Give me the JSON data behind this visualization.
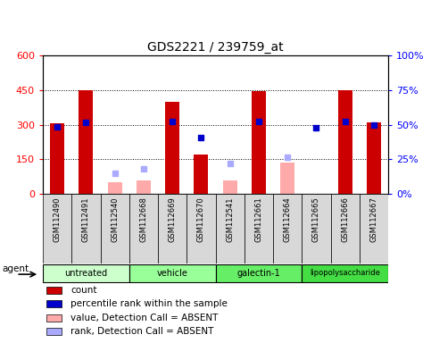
{
  "title": "GDS2221 / 239759_at",
  "samples": [
    "GSM112490",
    "GSM112491",
    "GSM112540",
    "GSM112668",
    "GSM112669",
    "GSM112670",
    "GSM112541",
    "GSM112661",
    "GSM112664",
    "GSM112665",
    "GSM112666",
    "GSM112667"
  ],
  "group_spans": [
    {
      "name": "untreated",
      "start": 0,
      "end": 2,
      "color": "#ccffcc"
    },
    {
      "name": "vehicle",
      "start": 3,
      "end": 5,
      "color": "#99ff99"
    },
    {
      "name": "galectin-1",
      "start": 6,
      "end": 8,
      "color": "#66ee66"
    },
    {
      "name": "lipopolysaccharide",
      "start": 9,
      "end": 11,
      "color": "#44dd44"
    }
  ],
  "count_values": [
    305,
    450,
    null,
    null,
    400,
    170,
    null,
    445,
    null,
    null,
    450,
    310
  ],
  "percentile_values": [
    290,
    310,
    null,
    null,
    315,
    245,
    null,
    315,
    null,
    285,
    315,
    300
  ],
  "absent_count_values": [
    null,
    null,
    50,
    60,
    null,
    null,
    60,
    null,
    135,
    null,
    null,
    null
  ],
  "absent_rank_values": [
    null,
    null,
    90,
    110,
    null,
    null,
    130,
    null,
    160,
    null,
    null,
    null
  ],
  "ylim_left": [
    0,
    600
  ],
  "yticks_left": [
    0,
    150,
    300,
    450,
    600
  ],
  "ytick_labels_left": [
    "0",
    "150",
    "300",
    "450",
    "600"
  ],
  "yticks_right": [
    0,
    25,
    50,
    75,
    100
  ],
  "ytick_labels_right": [
    "0%",
    "25%",
    "50%",
    "75%",
    "100%"
  ],
  "bar_color": "#cc0000",
  "rank_color": "#0000cc",
  "absent_count_color": "#ffaaaa",
  "absent_rank_color": "#aaaaff",
  "legend_items": [
    {
      "label": "count",
      "color": "#cc0000"
    },
    {
      "label": "percentile rank within the sample",
      "color": "#0000cc"
    },
    {
      "label": "value, Detection Call = ABSENT",
      "color": "#ffaaaa"
    },
    {
      "label": "rank, Detection Call = ABSENT",
      "color": "#aaaaff"
    }
  ],
  "bar_width": 0.5,
  "marker_size": 5
}
